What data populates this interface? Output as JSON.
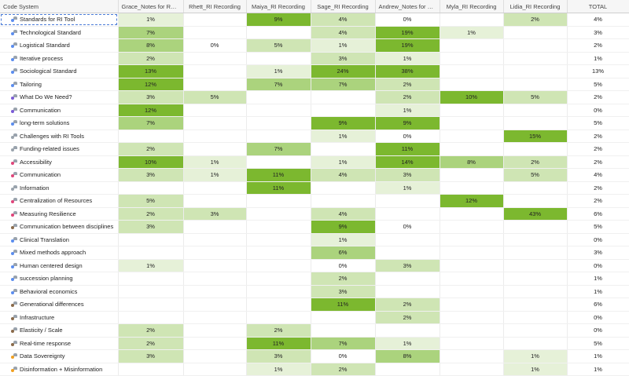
{
  "header": {
    "code_system": "Code System",
    "columns": [
      "Grace_Notes for Resili...",
      "Rhett_RI Recording",
      "Maiya_RI Recording",
      "Sage_RI Recording",
      "Andrew_Notes for Re...",
      "Myla_RI Recording",
      "Lidia_RI Recording",
      "TOTAL"
    ]
  },
  "rows": [
    {
      "code": "Standards for RI Tool",
      "color": "#5b8def",
      "values": [
        "1%",
        "",
        "9%",
        "4%",
        "0%",
        "",
        "2%",
        "4%"
      ]
    },
    {
      "code": "Technological Standard",
      "color": "#5b8def",
      "values": [
        "7%",
        "",
        "",
        "4%",
        "19%",
        "1%",
        "",
        "3%"
      ]
    },
    {
      "code": "Logistical Standard",
      "color": "#5b8def",
      "values": [
        "8%",
        "0%",
        "5%",
        "1%",
        "19%",
        "",
        "",
        "2%"
      ]
    },
    {
      "code": "Iterative process",
      "color": "#5b8def",
      "values": [
        "2%",
        "",
        "",
        "3%",
        "1%",
        "",
        "",
        "1%"
      ]
    },
    {
      "code": "Sociological Standard",
      "color": "#5b8def",
      "values": [
        "13%",
        "",
        "1%",
        "24%",
        "38%",
        "",
        "",
        "13%"
      ]
    },
    {
      "code": "Tailoring",
      "color": "#5b8def",
      "values": [
        "12%",
        "",
        "7%",
        "7%",
        "2%",
        "",
        "",
        "5%"
      ]
    },
    {
      "code": "What Do We Need?",
      "color": "#7a5bd6",
      "values": [
        "3%",
        "5%",
        "",
        "",
        "2%",
        "10%",
        "5%",
        "2%"
      ]
    },
    {
      "code": "Communication",
      "color": "#7a5bd6",
      "values": [
        "12%",
        "",
        "",
        "",
        "1%",
        "",
        "",
        "0%"
      ]
    },
    {
      "code": "long-term solutions",
      "color": "#5b8def",
      "values": [
        "7%",
        "",
        "",
        "9%",
        "9%",
        "",
        "",
        "5%"
      ]
    },
    {
      "code": "Challenges with RI Tools",
      "color": "#9aa3ad",
      "values": [
        "",
        "",
        "",
        "1%",
        "0%",
        "",
        "15%",
        "2%"
      ]
    },
    {
      "code": "Funding-related issues",
      "color": "#9aa3ad",
      "values": [
        "2%",
        "",
        "7%",
        "",
        "11%",
        "",
        "",
        "2%"
      ]
    },
    {
      "code": "Accessibility",
      "color": "#e0457b",
      "values": [
        "10%",
        "1%",
        "",
        "1%",
        "14%",
        "8%",
        "2%",
        "2%"
      ]
    },
    {
      "code": "Communication",
      "color": "#e0457b",
      "values": [
        "3%",
        "1%",
        "11%",
        "4%",
        "3%",
        "",
        "5%",
        "4%"
      ]
    },
    {
      "code": "Information",
      "color": "#9aa3ad",
      "values": [
        "",
        "",
        "11%",
        "",
        "1%",
        "",
        "",
        "2%"
      ]
    },
    {
      "code": "Centralization of Resources",
      "color": "#e0457b",
      "values": [
        "5%",
        "",
        "",
        "",
        "",
        "12%",
        "",
        "2%"
      ]
    },
    {
      "code": "Measuring Resilience",
      "color": "#e0457b",
      "values": [
        "2%",
        "3%",
        "",
        "4%",
        "",
        "",
        "43%",
        "6%"
      ]
    },
    {
      "code": "Communication between disciplines",
      "color": "#8a6a4a",
      "values": [
        "3%",
        "",
        "",
        "9%",
        "0%",
        "",
        "",
        "5%"
      ]
    },
    {
      "code": "Clinical Translation",
      "color": "#5b8def",
      "values": [
        "",
        "",
        "",
        "1%",
        "",
        "",
        "",
        "0%"
      ]
    },
    {
      "code": "Mixed methods approach",
      "color": "#5b8def",
      "values": [
        "",
        "",
        "",
        "6%",
        "",
        "",
        "",
        "3%"
      ]
    },
    {
      "code": "Human centered design",
      "color": "#5b8def",
      "values": [
        "1%",
        "",
        "",
        "0%",
        "3%",
        "",
        "",
        "0%"
      ]
    },
    {
      "code": "succession planning",
      "color": "#5b8def",
      "values": [
        "",
        "",
        "",
        "2%",
        "",
        "",
        "",
        "1%"
      ]
    },
    {
      "code": "Behavioral economics",
      "color": "#5b8def",
      "values": [
        "",
        "",
        "",
        "3%",
        "",
        "",
        "",
        "1%"
      ]
    },
    {
      "code": "Generational differences",
      "color": "#8a6a4a",
      "values": [
        "",
        "",
        "",
        "11%",
        "2%",
        "",
        "",
        "6%"
      ]
    },
    {
      "code": "Infrastructure",
      "color": "#8a6a4a",
      "values": [
        "",
        "",
        "",
        "",
        "2%",
        "",
        "",
        "0%"
      ]
    },
    {
      "code": "Elasticity / Scale",
      "color": "#8a6a4a",
      "values": [
        "2%",
        "",
        "2%",
        "",
        "",
        "",
        "",
        "0%"
      ]
    },
    {
      "code": "Real-time response",
      "color": "#8a6a4a",
      "values": [
        "2%",
        "",
        "11%",
        "7%",
        "1%",
        "",
        "",
        "5%"
      ]
    },
    {
      "code": "Data Sovereignty",
      "color": "#f0a020",
      "values": [
        "3%",
        "",
        "3%",
        "0%",
        "8%",
        "",
        "1%",
        "1%"
      ]
    },
    {
      "code": "Disinformation + Misinformation",
      "color": "#f0a020",
      "values": [
        "",
        "",
        "1%",
        "2%",
        "",
        "",
        "1%",
        "1%"
      ]
    }
  ]
}
